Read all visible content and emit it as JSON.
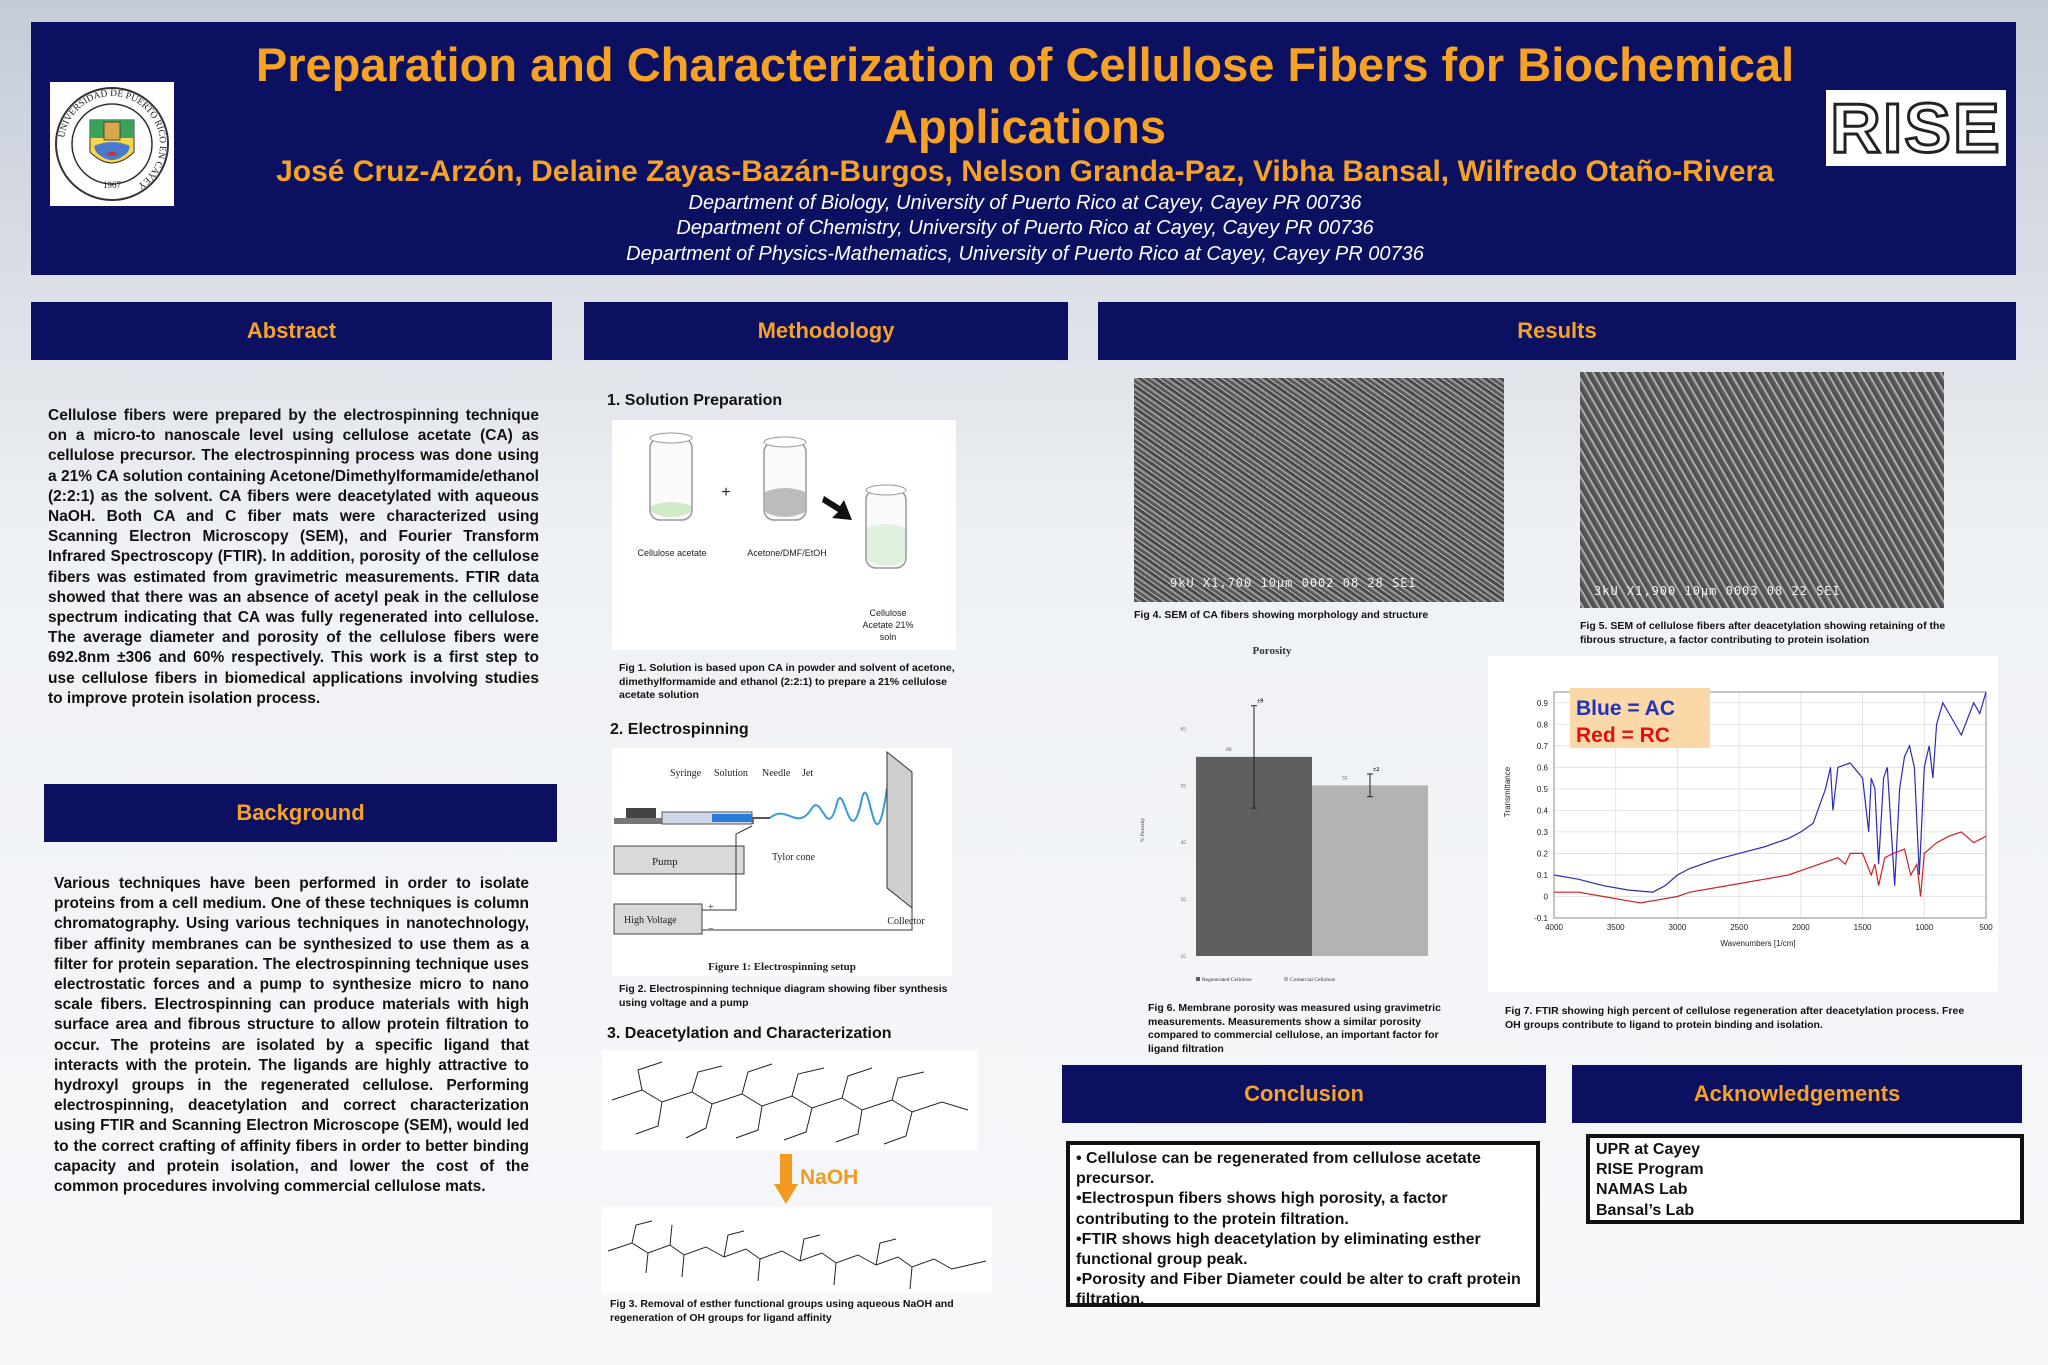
{
  "header": {
    "title": "Preparation and Characterization of Cellulose Fibers for Biochemical Applications",
    "authors": "José Cruz-Arzón, Delaine Zayas-Bazán-Burgos, Nelson Granda-Paz, Vibha Bansal, Wilfredo Otaño-Rivera",
    "departments": [
      "Department of Biology, University of Puerto Rico at Cayey, Cayey PR 00736",
      "Department of Chemistry, University of Puerto Rico at Cayey, Cayey PR 00736",
      "Department of Physics-Mathematics, University of Puerto Rico at Cayey, Cayey PR 00736"
    ],
    "right_logo_text": "RISE",
    "left_logo": {
      "ring_text": "UNIVERSIDAD DE PUERTO RICO EN CAYEY",
      "year": "1967"
    }
  },
  "sections": {
    "abstract": {
      "heading": "Abstract",
      "text": "Cellulose fibers were prepared by the electrospinning technique on a micro-to nanoscale level using cellulose acetate (CA) as cellulose precursor. The electrospinning process was done using a 21% CA solution containing Acetone/Dimethylformamide/ethanol (2:2:1) as the solvent. CA fibers were deacetylated with aqueous NaOH. Both CA and C fiber mats were characterized using Scanning Electron Microscopy (SEM), and Fourier Transform Infrared Spectroscopy (FTIR). In addition, porosity of the cellulose fibers was estimated from gravimetric measurements. FTIR data showed that there was an absence of acetyl peak in the cellulose spectrum indicating that CA was fully regenerated into cellulose. The average diameter and porosity of the cellulose fibers were 692.8nm ±306 and 60% respectively. This work is a first step to use cellulose fibers in biomedical applications involving studies to improve protein isolation process."
    },
    "background": {
      "heading": "Background",
      "text": "Various techniques have been performed in order to isolate proteins from a cell medium. One of these techniques is column chromatography. Using various techniques in nanotechnology, fiber affinity membranes can be synthesized to use them as a filter for protein separation. The electrospinning technique uses electrostatic forces and a pump to synthesize micro to nano scale fibers. Electrospinning can produce materials with high surface area and fibrous structure to allow protein filtration to occur. The proteins are isolated by a specific ligand that interacts with the protein. The ligands are highly attractive to hydroxyl groups in the regenerated cellulose. Performing electrospinning, deacetylation and correct characterization using FTIR and Scanning Electron Microscope (SEM), would led to the correct crafting of affinity fibers in order to better binding capacity and protein isolation, and lower the cost of the common procedures involving commercial cellulose mats."
    },
    "methodology": {
      "heading": "Methodology",
      "step1": "1. Solution Preparation",
      "step2": "2. Electrospinning",
      "step3": "3. Deacetylation and Characterization",
      "fig1": {
        "labels": [
          "Cellulose acetate",
          "Acetone/DMF/EtOH",
          "Cellulose",
          "Acetate 21%",
          "soln"
        ],
        "plus": "+",
        "caption": "Fig 1. Solution is based upon CA in powder and solvent of acetone, dimethylformamide and ethanol (2:2:1) to prepare a 21% cellulose acetate solution"
      },
      "fig2": {
        "labels": [
          "Syringe",
          "Solution",
          "Needle",
          "Jet",
          "Pump",
          "Tylor cone",
          "High Voltage",
          "Collector",
          "+",
          "−"
        ],
        "title": "Figure 1: Electrospinning setup",
        "caption": "Fig 2. Electrospinning technique diagram showing fiber synthesis using voltage and a pump"
      },
      "fig3": {
        "naoh": "NaOH",
        "caption": "Fig 3. Removal of esther functional groups using aqueous NaOH and regeneration of OH groups for ligand affinity"
      }
    },
    "results": {
      "heading": "Results",
      "fig4": {
        "sem_label": "9kU   X1,700   10μm 0002 08 28 SEI",
        "caption": "Fig 4. SEM of CA fibers showing morphology and structure"
      },
      "fig5": {
        "sem_label": "3kU   X1,900   10μm 0003 08 22 SEI",
        "caption": "Fig 5. SEM of cellulose fibers after deacetylation showing retaining of the fibrous structure, a factor contributing to protein isolation"
      },
      "fig6": {
        "caption": "Fig 6. Membrane porosity was measured using gravimetric measurements. Measurements show a similar porosity compared to commercial cellulose, an important factor for ligand filtration"
      },
      "fig7": {
        "legend_blue": "Blue = AC",
        "legend_red": "Red = RC",
        "caption": "Fig 7. FTIR showing high percent of cellulose regeneration after deacetylation process. Free OH groups contribute to ligand to protein binding and isolation."
      }
    },
    "conclusion": {
      "heading": "Conclusion",
      "items": [
        "• Cellulose can be regenerated from cellulose acetate precursor.",
        "•Electrospun fibers shows high porosity, a factor contributing to the protein filtration.",
        "•FTIR shows high deacetylation by eliminating esther functional group peak.",
        "•Porosity and Fiber Diameter could be alter to craft protein filtration."
      ]
    },
    "acknowledgements": {
      "heading": "Acknowledgements",
      "items": [
        "UPR at Cayey",
        "RISE Program",
        "NAMAS Lab",
        "Bansal’s Lab"
      ]
    }
  },
  "chart_data": [
    {
      "type": "bar",
      "title": "Porosity",
      "ylabel": "% Porosity",
      "ylim": [
        25,
        70
      ],
      "yticks": [
        25,
        35,
        45,
        55,
        65
      ],
      "categories": [
        "Regenerated Cellulose",
        "Comercial Cellulose"
      ],
      "values": [
        60,
        55
      ],
      "errors": [
        9,
        2
      ],
      "value_labels": [
        "60",
        "55"
      ],
      "error_labels": [
        "±9",
        "±2"
      ],
      "colors": [
        "#5f5f5f",
        "#b3b3b3"
      ],
      "legend": [
        "Regenerated Cellulose",
        "Comercial Cellulose"
      ],
      "legend_position": "bottom"
    },
    {
      "type": "line",
      "xlabel": "Wavenumbers [1/cm]",
      "ylabel": "Transmittance",
      "xlim": [
        4000,
        500
      ],
      "ylim": [
        -0.1,
        0.95
      ],
      "xticks": [
        4000,
        3500,
        3000,
        2500,
        2000,
        1500,
        1000,
        500
      ],
      "yticks": [
        -0.1,
        0,
        0.1,
        0.2,
        0.3,
        0.4,
        0.5,
        0.6,
        0.7,
        0.8,
        0.9
      ],
      "grid": true,
      "series": [
        {
          "name": "AC",
          "color": "#2b2bb8",
          "x": [
            4000,
            3800,
            3600,
            3400,
            3200,
            3100,
            3000,
            2900,
            2700,
            2500,
            2300,
            2100,
            2000,
            1900,
            1800,
            1760,
            1740,
            1700,
            1600,
            1500,
            1450,
            1430,
            1400,
            1370,
            1330,
            1300,
            1240,
            1200,
            1160,
            1120,
            1080,
            1040,
            1000,
            960,
            930,
            900,
            850,
            800,
            700,
            600,
            550,
            500
          ],
          "y": [
            0.1,
            0.08,
            0.05,
            0.03,
            0.02,
            0.05,
            0.1,
            0.13,
            0.17,
            0.2,
            0.23,
            0.27,
            0.3,
            0.34,
            0.5,
            0.6,
            0.4,
            0.6,
            0.62,
            0.55,
            0.3,
            0.55,
            0.5,
            0.15,
            0.55,
            0.6,
            0.05,
            0.5,
            0.65,
            0.7,
            0.6,
            0.1,
            0.6,
            0.7,
            0.55,
            0.8,
            0.9,
            0.85,
            0.75,
            0.9,
            0.85,
            0.95
          ]
        },
        {
          "name": "RC",
          "color": "#cc2222",
          "x": [
            4000,
            3800,
            3600,
            3400,
            3300,
            3200,
            3000,
            2900,
            2700,
            2500,
            2300,
            2100,
            2000,
            1900,
            1700,
            1640,
            1600,
            1500,
            1430,
            1400,
            1370,
            1320,
            1250,
            1160,
            1110,
            1060,
            1030,
            1000,
            900,
            800,
            700,
            600,
            500
          ],
          "y": [
            0.02,
            0.02,
            0.0,
            -0.02,
            -0.03,
            -0.02,
            0.0,
            0.02,
            0.04,
            0.06,
            0.08,
            0.1,
            0.12,
            0.14,
            0.18,
            0.15,
            0.2,
            0.2,
            0.1,
            0.15,
            0.05,
            0.18,
            0.2,
            0.22,
            0.1,
            0.15,
            0.0,
            0.2,
            0.25,
            0.28,
            0.3,
            0.25,
            0.28
          ]
        }
      ]
    }
  ]
}
